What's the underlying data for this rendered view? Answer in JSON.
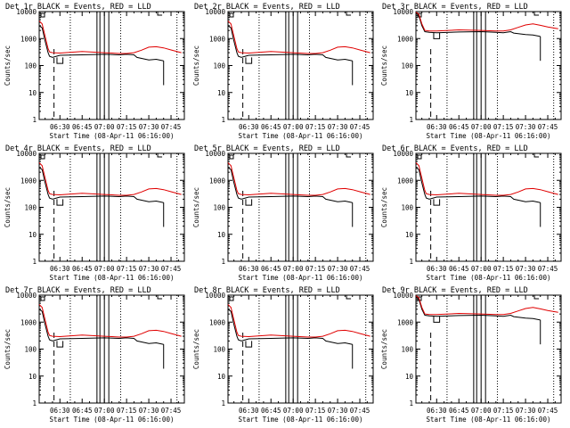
{
  "colors": {
    "events": "#000000",
    "lld": "#e00000",
    "axes": "#000000",
    "background": "#ffffff"
  },
  "chart_data": [
    {
      "type": "line",
      "title": "Det 1r BLACK = Events, RED = LLD",
      "xlabel": "Start Time (08-Apr-11 06:16:00)",
      "ylabel": "Counts/sec",
      "yscale": "log",
      "ylim": [
        1,
        10000
      ],
      "xlim": [
        "06:16",
        "07:54"
      ],
      "xticks": [
        "06:30",
        "06:45",
        "07:00",
        "07:15",
        "07:30",
        "07:45"
      ],
      "yticks": [
        "1",
        "10",
        "100",
        "1000",
        "10000"
      ],
      "grid": false,
      "legend": "none",
      "events_profile": "low",
      "series": [
        {
          "key": "events",
          "x": [
            "06:16",
            "06:18",
            "06:20",
            "06:22",
            "06:23",
            "06:25",
            "06:30",
            "06:45",
            "07:00",
            "07:10",
            "07:15",
            "07:20",
            "07:22",
            "07:30",
            "07:35",
            "07:40"
          ],
          "values": [
            3000,
            2500,
            800,
            300,
            220,
            200,
            240,
            250,
            260,
            250,
            260,
            250,
            200,
            160,
            170,
            150
          ]
        },
        {
          "key": "lld",
          "x": [
            "06:16",
            "06:18",
            "06:20",
            "06:22",
            "06:23",
            "06:25",
            "06:30",
            "06:45",
            "07:00",
            "07:10",
            "07:15",
            "07:20",
            "07:25",
            "07:30",
            "07:35",
            "07:40",
            "07:45",
            "07:52"
          ],
          "values": [
            4500,
            3500,
            1200,
            420,
            320,
            300,
            290,
            330,
            300,
            280,
            280,
            300,
            370,
            480,
            500,
            450,
            380,
            300
          ]
        }
      ]
    },
    {
      "type": "line",
      "title": "Det 2r BLACK = Events, RED = LLD",
      "xlabel": "Start Time (08-Apr-11 06:16:00)",
      "ylabel": "Counts/sec",
      "yscale": "log",
      "ylim": [
        1,
        10000
      ],
      "xlim": [
        "06:16",
        "07:54"
      ],
      "xticks": [
        "06:30",
        "06:45",
        "07:00",
        "07:15",
        "07:30",
        "07:45"
      ],
      "yticks": [
        "1",
        "10",
        "100",
        "1000",
        "10000"
      ],
      "grid": false,
      "legend": "none",
      "events_profile": "low",
      "series": [
        {
          "key": "events",
          "x": [
            "06:16",
            "06:18",
            "06:20",
            "06:22",
            "06:23",
            "06:25",
            "06:30",
            "06:45",
            "07:00",
            "07:10",
            "07:15",
            "07:20",
            "07:22",
            "07:30",
            "07:35",
            "07:40"
          ],
          "values": [
            3000,
            2500,
            800,
            300,
            220,
            200,
            240,
            250,
            260,
            250,
            260,
            250,
            200,
            160,
            170,
            150
          ]
        },
        {
          "key": "lld",
          "x": [
            "06:16",
            "06:18",
            "06:20",
            "06:22",
            "06:23",
            "06:25",
            "06:30",
            "06:45",
            "07:00",
            "07:10",
            "07:15",
            "07:20",
            "07:25",
            "07:30",
            "07:35",
            "07:40",
            "07:45",
            "07:52"
          ],
          "values": [
            4500,
            3500,
            1200,
            420,
            320,
            300,
            290,
            330,
            300,
            280,
            280,
            300,
            370,
            480,
            500,
            450,
            380,
            300
          ]
        }
      ]
    },
    {
      "type": "line",
      "title": "Det 3r BLACK = Events, RED = LLD",
      "xlabel": "Start Time (08-Apr-11 06:16:00)",
      "ylabel": "Counts/sec",
      "yscale": "log",
      "ylim": [
        1,
        10000
      ],
      "xlim": [
        "06:16",
        "07:54"
      ],
      "xticks": [
        "06:30",
        "06:45",
        "07:00",
        "07:15",
        "07:30",
        "07:45"
      ],
      "yticks": [
        "1",
        "10",
        "100",
        "1000",
        "10000"
      ],
      "grid": false,
      "legend": "none",
      "events_profile": "high",
      "series": [
        {
          "key": "events",
          "x": [
            "06:16",
            "06:18",
            "06:20",
            "06:22",
            "06:25",
            "06:30",
            "06:45",
            "07:00",
            "07:10",
            "07:15",
            "07:20",
            "07:22",
            "07:30",
            "07:35",
            "07:40"
          ],
          "values": [
            9000,
            7000,
            3000,
            1800,
            1700,
            1650,
            1750,
            1800,
            1700,
            1650,
            1800,
            1600,
            1400,
            1350,
            1200
          ]
        },
        {
          "key": "lld",
          "x": [
            "06:16",
            "06:18",
            "06:20",
            "06:22",
            "06:25",
            "06:30",
            "06:45",
            "07:00",
            "07:10",
            "07:15",
            "07:20",
            "07:25",
            "07:30",
            "07:35",
            "07:40",
            "07:45",
            "07:52"
          ],
          "values": [
            9500,
            8000,
            3500,
            2000,
            1900,
            1900,
            2100,
            2000,
            1900,
            1900,
            2100,
            2600,
            3200,
            3500,
            3100,
            2700,
            2300
          ]
        }
      ]
    },
    {
      "type": "line",
      "title": "Det 4r BLACK = Events, RED = LLD",
      "xlabel": "Start Time (08-Apr-11 06:16:00)",
      "ylabel": "Counts/sec",
      "yscale": "log",
      "ylim": [
        1,
        10000
      ],
      "xlim": [
        "06:16",
        "07:54"
      ],
      "xticks": [
        "06:30",
        "06:45",
        "07:00",
        "07:15",
        "07:30",
        "07:45"
      ],
      "yticks": [
        "1",
        "10",
        "100",
        "1000",
        "10000"
      ],
      "grid": false,
      "legend": "none",
      "events_profile": "low",
      "series": [
        {
          "key": "events",
          "x": [
            "06:16",
            "06:18",
            "06:20",
            "06:22",
            "06:23",
            "06:25",
            "06:30",
            "06:45",
            "07:00",
            "07:10",
            "07:15",
            "07:20",
            "07:22",
            "07:30",
            "07:35",
            "07:40"
          ],
          "values": [
            3000,
            2500,
            800,
            300,
            220,
            200,
            240,
            250,
            260,
            250,
            260,
            250,
            200,
            160,
            170,
            150
          ]
        },
        {
          "key": "lld",
          "x": [
            "06:16",
            "06:18",
            "06:20",
            "06:22",
            "06:23",
            "06:25",
            "06:30",
            "06:45",
            "07:00",
            "07:10",
            "07:15",
            "07:20",
            "07:25",
            "07:30",
            "07:35",
            "07:40",
            "07:45",
            "07:52"
          ],
          "values": [
            4500,
            3500,
            1200,
            420,
            320,
            300,
            290,
            330,
            300,
            280,
            280,
            300,
            370,
            480,
            500,
            450,
            380,
            300
          ]
        }
      ]
    },
    {
      "type": "line",
      "title": "Det 5r BLACK = Events, RED = LLD",
      "xlabel": "Start Time (08-Apr-11 06:16:00)",
      "ylabel": "Counts/sec",
      "yscale": "log",
      "ylim": [
        1,
        10000
      ],
      "xlim": [
        "06:16",
        "07:54"
      ],
      "xticks": [
        "06:30",
        "06:45",
        "07:00",
        "07:15",
        "07:30",
        "07:45"
      ],
      "yticks": [
        "1",
        "10",
        "100",
        "1000",
        "10000"
      ],
      "grid": false,
      "legend": "none",
      "events_profile": "low",
      "series": [
        {
          "key": "events",
          "x": [
            "06:16",
            "06:18",
            "06:20",
            "06:22",
            "06:23",
            "06:25",
            "06:30",
            "06:45",
            "07:00",
            "07:10",
            "07:15",
            "07:20",
            "07:22",
            "07:30",
            "07:35",
            "07:40"
          ],
          "values": [
            3000,
            2500,
            800,
            300,
            220,
            200,
            240,
            250,
            260,
            250,
            260,
            250,
            200,
            160,
            170,
            150
          ]
        },
        {
          "key": "lld",
          "x": [
            "06:16",
            "06:18",
            "06:20",
            "06:22",
            "06:23",
            "06:25",
            "06:30",
            "06:45",
            "07:00",
            "07:10",
            "07:15",
            "07:20",
            "07:25",
            "07:30",
            "07:35",
            "07:40",
            "07:45",
            "07:52"
          ],
          "values": [
            4500,
            3500,
            1200,
            420,
            320,
            300,
            290,
            330,
            300,
            280,
            280,
            300,
            370,
            480,
            500,
            450,
            380,
            300
          ]
        }
      ]
    },
    {
      "type": "line",
      "title": "Det 6r BLACK = Events, RED = LLD",
      "xlabel": "Start Time (08-Apr-11 06:16:00)",
      "ylabel": "Counts/sec",
      "yscale": "log",
      "ylim": [
        1,
        10000
      ],
      "xlim": [
        "06:16",
        "07:54"
      ],
      "xticks": [
        "06:30",
        "06:45",
        "07:00",
        "07:15",
        "07:30",
        "07:45"
      ],
      "yticks": [
        "1",
        "10",
        "100",
        "1000",
        "10000"
      ],
      "grid": false,
      "legend": "none",
      "events_profile": "low",
      "series": [
        {
          "key": "events",
          "x": [
            "06:16",
            "06:18",
            "06:20",
            "06:22",
            "06:23",
            "06:25",
            "06:30",
            "06:45",
            "07:00",
            "07:10",
            "07:15",
            "07:20",
            "07:22",
            "07:30",
            "07:35",
            "07:40"
          ],
          "values": [
            3000,
            2500,
            800,
            300,
            220,
            200,
            240,
            250,
            260,
            250,
            260,
            250,
            200,
            160,
            170,
            150
          ]
        },
        {
          "key": "lld",
          "x": [
            "06:16",
            "06:18",
            "06:20",
            "06:22",
            "06:23",
            "06:25",
            "06:30",
            "06:45",
            "07:00",
            "07:10",
            "07:15",
            "07:20",
            "07:25",
            "07:30",
            "07:35",
            "07:40",
            "07:45",
            "07:52"
          ],
          "values": [
            4500,
            3500,
            1200,
            420,
            320,
            300,
            290,
            330,
            300,
            280,
            280,
            300,
            370,
            480,
            500,
            450,
            380,
            300
          ]
        }
      ]
    },
    {
      "type": "line",
      "title": "Det 7r BLACK = Events, RED = LLD",
      "xlabel": "Start Time (08-Apr-11 06:16:00)",
      "ylabel": "Counts/sec",
      "yscale": "log",
      "ylim": [
        1,
        10000
      ],
      "xlim": [
        "06:16",
        "07:54"
      ],
      "xticks": [
        "06:30",
        "06:45",
        "07:00",
        "07:15",
        "07:30",
        "07:45"
      ],
      "yticks": [
        "1",
        "10",
        "100",
        "1000",
        "10000"
      ],
      "grid": false,
      "legend": "none",
      "events_profile": "low",
      "series": [
        {
          "key": "events",
          "x": [
            "06:16",
            "06:18",
            "06:20",
            "06:22",
            "06:23",
            "06:25",
            "06:30",
            "06:45",
            "07:00",
            "07:10",
            "07:15",
            "07:20",
            "07:22",
            "07:30",
            "07:35",
            "07:40"
          ],
          "values": [
            3000,
            2500,
            800,
            300,
            220,
            200,
            240,
            250,
            260,
            250,
            260,
            250,
            200,
            160,
            170,
            150
          ]
        },
        {
          "key": "lld",
          "x": [
            "06:16",
            "06:18",
            "06:20",
            "06:22",
            "06:23",
            "06:25",
            "06:30",
            "06:45",
            "07:00",
            "07:10",
            "07:15",
            "07:20",
            "07:25",
            "07:30",
            "07:35",
            "07:40",
            "07:45",
            "07:52"
          ],
          "values": [
            4500,
            3500,
            1200,
            420,
            320,
            300,
            290,
            330,
            300,
            280,
            280,
            300,
            370,
            480,
            500,
            450,
            380,
            300
          ]
        }
      ]
    },
    {
      "type": "line",
      "title": "Det 8r BLACK = Events, RED = LLD",
      "xlabel": "Start Time (08-Apr-11 06:16:00)",
      "ylabel": "Counts/sec",
      "yscale": "log",
      "ylim": [
        1,
        10000
      ],
      "xlim": [
        "06:16",
        "07:54"
      ],
      "xticks": [
        "06:30",
        "06:45",
        "07:00",
        "07:15",
        "07:30",
        "07:45"
      ],
      "yticks": [
        "1",
        "10",
        "100",
        "1000",
        "10000"
      ],
      "grid": false,
      "legend": "none",
      "events_profile": "low",
      "series": [
        {
          "key": "events",
          "x": [
            "06:16",
            "06:18",
            "06:20",
            "06:22",
            "06:23",
            "06:25",
            "06:30",
            "06:45",
            "07:00",
            "07:10",
            "07:15",
            "07:20",
            "07:22",
            "07:30",
            "07:35",
            "07:40"
          ],
          "values": [
            3000,
            2500,
            800,
            300,
            220,
            200,
            240,
            250,
            260,
            250,
            260,
            250,
            200,
            160,
            170,
            150
          ]
        },
        {
          "key": "lld",
          "x": [
            "06:16",
            "06:18",
            "06:20",
            "06:22",
            "06:23",
            "06:25",
            "06:30",
            "06:45",
            "07:00",
            "07:10",
            "07:15",
            "07:20",
            "07:25",
            "07:30",
            "07:35",
            "07:40",
            "07:45",
            "07:52"
          ],
          "values": [
            4500,
            3500,
            1200,
            420,
            320,
            300,
            290,
            330,
            300,
            280,
            280,
            300,
            370,
            480,
            500,
            450,
            380,
            300
          ]
        }
      ]
    },
    {
      "type": "line",
      "title": "Det 9r BLACK = Events, RED = LLD",
      "xlabel": "Start Time (08-Apr-11 06:16:00)",
      "ylabel": "Counts/sec",
      "yscale": "log",
      "ylim": [
        1,
        10000
      ],
      "xlim": [
        "06:16",
        "07:54"
      ],
      "xticks": [
        "06:30",
        "06:45",
        "07:00",
        "07:15",
        "07:30",
        "07:45"
      ],
      "yticks": [
        "1",
        "10",
        "100",
        "1000",
        "10000"
      ],
      "grid": false,
      "legend": "none",
      "events_profile": "high",
      "series": [
        {
          "key": "events",
          "x": [
            "06:16",
            "06:18",
            "06:20",
            "06:22",
            "06:25",
            "06:30",
            "06:45",
            "07:00",
            "07:10",
            "07:15",
            "07:20",
            "07:22",
            "07:30",
            "07:35",
            "07:40"
          ],
          "values": [
            9000,
            7000,
            3000,
            1800,
            1700,
            1650,
            1750,
            1800,
            1700,
            1650,
            1800,
            1600,
            1400,
            1350,
            1200
          ]
        },
        {
          "key": "lld",
          "x": [
            "06:16",
            "06:18",
            "06:20",
            "06:22",
            "06:25",
            "06:30",
            "06:45",
            "07:00",
            "07:10",
            "07:15",
            "07:20",
            "07:25",
            "07:30",
            "07:35",
            "07:40",
            "07:45",
            "07:52"
          ],
          "values": [
            9500,
            8000,
            3500,
            2000,
            1900,
            1900,
            2100,
            2000,
            1900,
            1900,
            2100,
            2600,
            3200,
            3500,
            3100,
            2700,
            2300
          ]
        }
      ]
    }
  ]
}
